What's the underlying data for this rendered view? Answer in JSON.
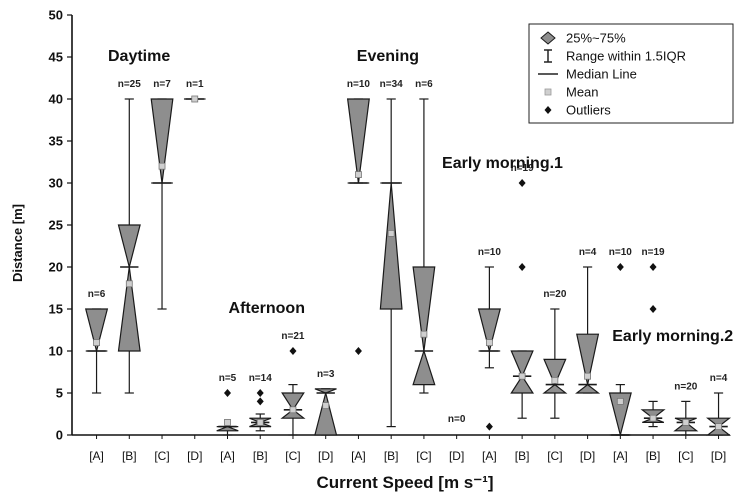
{
  "chart_data": {
    "type": "box",
    "xlabel": "Current Speed [m s⁻¹]",
    "ylabel": "Distance [m]",
    "ylim": [
      0,
      50
    ],
    "yticks": [
      0,
      5,
      10,
      15,
      20,
      25,
      30,
      35,
      40,
      45,
      50
    ],
    "grid": false,
    "legend_position": "top-right",
    "legend": [
      {
        "symbol": "box",
        "label": "25%~75%"
      },
      {
        "symbol": "whisker",
        "label": "Range within 1.5IQR"
      },
      {
        "symbol": "median",
        "label": "Median Line"
      },
      {
        "symbol": "mean",
        "label": "Mean"
      },
      {
        "symbol": "outlier",
        "label": "Outliers"
      }
    ],
    "categories": [
      "[A]",
      "[B]",
      "[C]",
      "[D]",
      "[A]",
      "[B]",
      "[C]",
      "[D]",
      "[A]",
      "[B]",
      "[C]",
      "[D]",
      "[A]",
      "[B]",
      "[C]",
      "[D]",
      "[A]",
      "[B]",
      "[C]",
      "[D]"
    ],
    "groups": [
      {
        "label": "Daytime",
        "boxes": [
          {
            "category": "[A]",
            "n_label": "n=6",
            "min": 5,
            "q1": 10,
            "median": 10,
            "q3": 15,
            "max": 15,
            "mean": 11,
            "outliers": []
          },
          {
            "category": "[B]",
            "n_label": "n=25",
            "min": 5,
            "q1": 10,
            "median": 20,
            "q3": 25,
            "max": 40,
            "mean": 18,
            "outliers": []
          },
          {
            "category": "[C]",
            "n_label": "n=7",
            "min": 15,
            "q1": 30,
            "median": 30,
            "q3": 40,
            "max": 40,
            "mean": 32,
            "outliers": []
          },
          {
            "category": "[D]",
            "n_label": "n=1",
            "min": 40,
            "q1": 40,
            "median": 40,
            "q3": 40,
            "max": 40,
            "mean": 40,
            "outliers": []
          }
        ]
      },
      {
        "label": "Afternoon",
        "boxes": [
          {
            "category": "[A]",
            "n_label": "n=5",
            "min": 0,
            "q1": 0.5,
            "median": 1,
            "q3": 1,
            "max": 1,
            "mean": 1.5,
            "outliers": [
              5
            ]
          },
          {
            "category": "[B]",
            "n_label": "n=14",
            "min": 0.5,
            "q1": 1,
            "median": 1.5,
            "q3": 2,
            "max": 2.5,
            "mean": 1.5,
            "outliers": [
              4,
              5
            ]
          },
          {
            "category": "[C]",
            "n_label": "n=21",
            "min": 0,
            "q1": 2,
            "median": 3,
            "q3": 5,
            "max": 6,
            "mean": 3,
            "outliers": [
              10
            ]
          },
          {
            "category": "[D]",
            "n_label": "n=3",
            "min": 0,
            "q1": 0,
            "median": 5,
            "q3": 5.5,
            "max": 5.5,
            "mean": 3.5,
            "outliers": []
          }
        ]
      },
      {
        "label": "Evening",
        "boxes": [
          {
            "category": "[A]",
            "n_label": "n=10",
            "min": 30,
            "q1": 30,
            "median": 30,
            "q3": 40,
            "max": 40,
            "mean": 31,
            "outliers": [
              10
            ]
          },
          {
            "category": "[B]",
            "n_label": "n=34",
            "min": 1,
            "q1": 15,
            "median": 30,
            "q3": 30,
            "max": 40,
            "mean": 24,
            "outliers": []
          },
          {
            "category": "[C]",
            "n_label": "n=6",
            "min": 5,
            "q1": 6,
            "median": 10,
            "q3": 20,
            "max": 40,
            "mean": 12,
            "outliers": []
          },
          {
            "category": "[D]",
            "n_label": "n=0",
            "min": null,
            "q1": null,
            "median": null,
            "q3": null,
            "max": null,
            "mean": null,
            "outliers": []
          }
        ]
      },
      {
        "label": "Early morning.1",
        "boxes": [
          {
            "category": "[A]",
            "n_label": "n=10",
            "min": 8,
            "q1": 10,
            "median": 10,
            "q3": 15,
            "max": 20,
            "mean": 11,
            "outliers": [
              1
            ]
          },
          {
            "category": "[B]",
            "n_label": "n=19",
            "min": 2,
            "q1": 5,
            "median": 7,
            "q3": 10,
            "max": 10,
            "mean": 7,
            "outliers": [
              20,
              30
            ]
          },
          {
            "category": "[C]",
            "n_label": "n=20",
            "min": 2,
            "q1": 5,
            "median": 6,
            "q3": 9,
            "max": 15,
            "mean": 6.5,
            "outliers": []
          },
          {
            "category": "[D]",
            "n_label": "n=4",
            "min": 5,
            "q1": 5,
            "median": 6,
            "q3": 12,
            "max": 20,
            "mean": 7,
            "outliers": []
          }
        ]
      },
      {
        "label": "Early morning.2",
        "boxes": [
          {
            "category": "[A]",
            "n_label": "n=10",
            "min": 0,
            "q1": 0,
            "median": 0,
            "q3": 5,
            "max": 6,
            "mean": 4,
            "outliers": [
              20
            ]
          },
          {
            "category": "[B]",
            "n_label": "n=19",
            "min": 1,
            "q1": 1.5,
            "median": 2,
            "q3": 3,
            "max": 4,
            "mean": 2,
            "outliers": [
              15,
              20
            ]
          },
          {
            "category": "[C]",
            "n_label": "n=20",
            "min": 0,
            "q1": 0.5,
            "median": 1.5,
            "q3": 2,
            "max": 4,
            "mean": 1.5,
            "outliers": []
          },
          {
            "category": "[D]",
            "n_label": "n=4",
            "min": 0,
            "q1": 0,
            "median": 1,
            "q3": 2,
            "max": 5,
            "mean": 1,
            "outliers": []
          }
        ]
      }
    ]
  },
  "colors": {
    "box_fill": "#8e8e8e",
    "box_stroke": "#1a1a1a",
    "mean_marker": "#cfcfcf",
    "n_label_dark": "#222222",
    "n_label_blue": "#3b3b8f"
  }
}
